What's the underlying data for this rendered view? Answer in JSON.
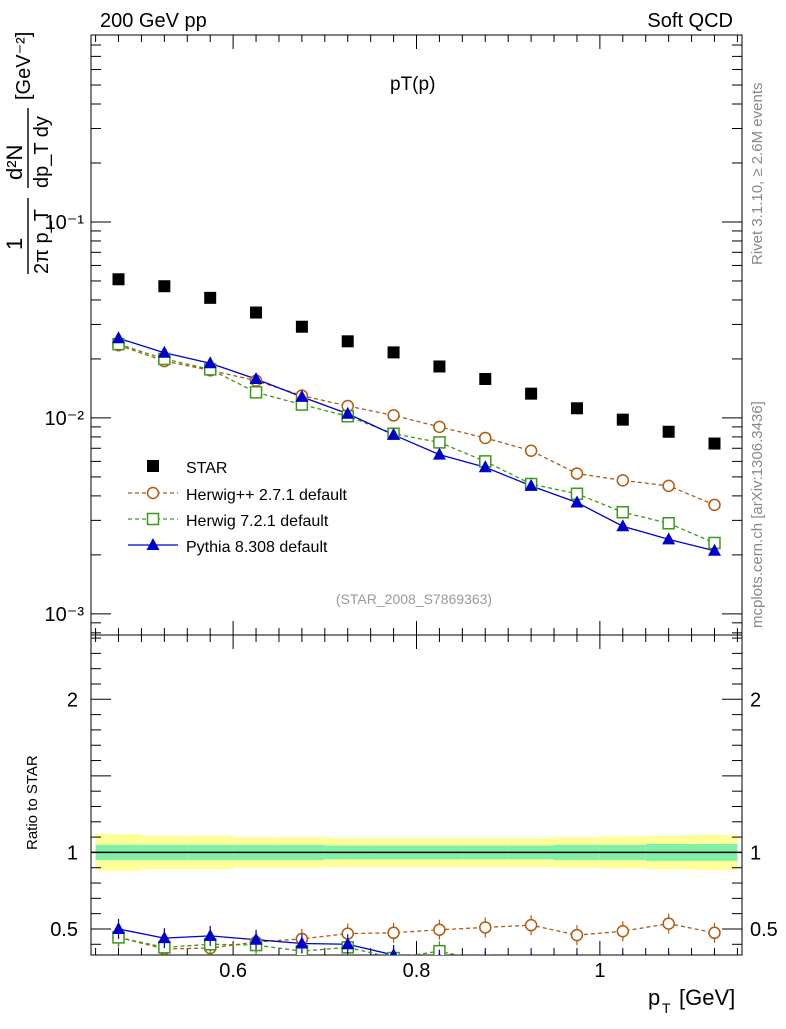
{
  "header": {
    "left": "200 GeV pp",
    "right": "Soft QCD"
  },
  "side_labels": {
    "top": "Rivet 3.1.10, ≥ 2.6M events",
    "bottom": "mcplots.cern.ch [arXiv:1306.3436]"
  },
  "colors": {
    "star": "#000000",
    "herwigpp": "#b05a10",
    "herwig7": "#3a9a1a",
    "pythia": "#0000cc",
    "band_inner": "#7ff0a8",
    "band_outer": "#ffff99"
  },
  "chart_data": [
    {
      "type": "line",
      "title": "pT(p)",
      "ylabel_parts": {
        "frac1_num": "1",
        "frac1_den": "2π p_T",
        "frac2_num": "d²N",
        "frac2_den": "dp_T dy",
        "unit": "[GeV⁻²]"
      },
      "yscale": "log",
      "ylim": [
        0.00078,
        0.9
      ],
      "xlim": [
        0.445,
        1.155
      ],
      "y_ticks": [
        "10⁻³",
        "10⁻²",
        "10⁻¹"
      ],
      "watermark": "(STAR_2008_S7869363)",
      "legend_position": "middle-left",
      "x": [
        0.475,
        0.525,
        0.575,
        0.625,
        0.675,
        0.725,
        0.775,
        0.825,
        0.875,
        0.925,
        0.975,
        1.025,
        1.075,
        1.125
      ],
      "series": [
        {
          "name": "STAR",
          "marker": "square-filled",
          "values": [
            0.051,
            0.047,
            0.041,
            0.0345,
            0.0292,
            0.0246,
            0.0216,
            0.0183,
            0.0158,
            0.0133,
            0.0112,
            0.0098,
            0.0085,
            0.0074
          ]
        },
        {
          "name": "Herwig++ 2.7.1 default",
          "marker": "circle-open",
          "values": [
            0.0235,
            0.0195,
            0.0175,
            0.0155,
            0.013,
            0.0115,
            0.0103,
            0.009,
            0.0079,
            0.0068,
            0.0052,
            0.0048,
            0.0045,
            0.0036
          ]
        },
        {
          "name": "Herwig 7.2.1 default",
          "marker": "square-open",
          "values": [
            0.0238,
            0.02,
            0.0177,
            0.0135,
            0.0117,
            0.0102,
            0.0083,
            0.0075,
            0.006,
            0.0046,
            0.0041,
            0.0033,
            0.0029,
            0.0023
          ]
        },
        {
          "name": "Pythia 8.308 default",
          "marker": "triangle-filled",
          "values": [
            0.0255,
            0.0215,
            0.019,
            0.0158,
            0.0128,
            0.0105,
            0.0082,
            0.0065,
            0.0056,
            0.0045,
            0.0037,
            0.0028,
            0.0024,
            0.0021
          ]
        }
      ]
    },
    {
      "type": "line",
      "ylabel": "Ratio to STAR",
      "xlabel_main": "p",
      "xlabel_sub": "T",
      "xlabel_unit": "[GeV]",
      "ylim": [
        0.33,
        2.42
      ],
      "xlim": [
        0.445,
        1.155
      ],
      "y_ticks": [
        "0.5",
        "1",
        "2"
      ],
      "x_ticks": [
        "0.6",
        "0.8",
        "1"
      ],
      "band_inner_halfwidth": [
        0.05,
        0.05,
        0.05,
        0.05,
        0.05,
        0.045,
        0.045,
        0.045,
        0.045,
        0.045,
        0.05,
        0.05,
        0.055,
        0.055
      ],
      "band_outer_halfwidth": [
        0.12,
        0.11,
        0.11,
        0.1,
        0.1,
        0.095,
        0.095,
        0.095,
        0.095,
        0.095,
        0.1,
        0.105,
        0.11,
        0.115
      ],
      "x": [
        0.475,
        0.525,
        0.575,
        0.625,
        0.675,
        0.725,
        0.775,
        0.825,
        0.875,
        0.925,
        0.975,
        1.025,
        1.075,
        1.125
      ],
      "series": [
        {
          "name": "Herwig++ 2.7.1 default",
          "values": [
            0.445,
            0.37,
            0.375,
            0.415,
            0.435,
            0.47,
            0.475,
            0.495,
            0.51,
            0.525,
            0.46,
            0.485,
            0.535,
            0.475
          ]
        },
        {
          "name": "Herwig 7.2.1 default",
          "values": [
            0.445,
            0.38,
            0.4,
            0.395,
            0.355,
            0.38,
            0.31,
            0.355,
            0.29,
            0.28,
            0.28,
            0.28,
            0.28,
            0.28
          ]
        },
        {
          "name": "Pythia 8.308 default",
          "values": [
            0.5,
            0.44,
            0.455,
            0.43,
            0.405,
            0.4,
            0.33,
            0.3,
            0.29,
            0.28,
            0.28,
            0.28,
            0.28,
            0.28
          ]
        }
      ]
    }
  ]
}
